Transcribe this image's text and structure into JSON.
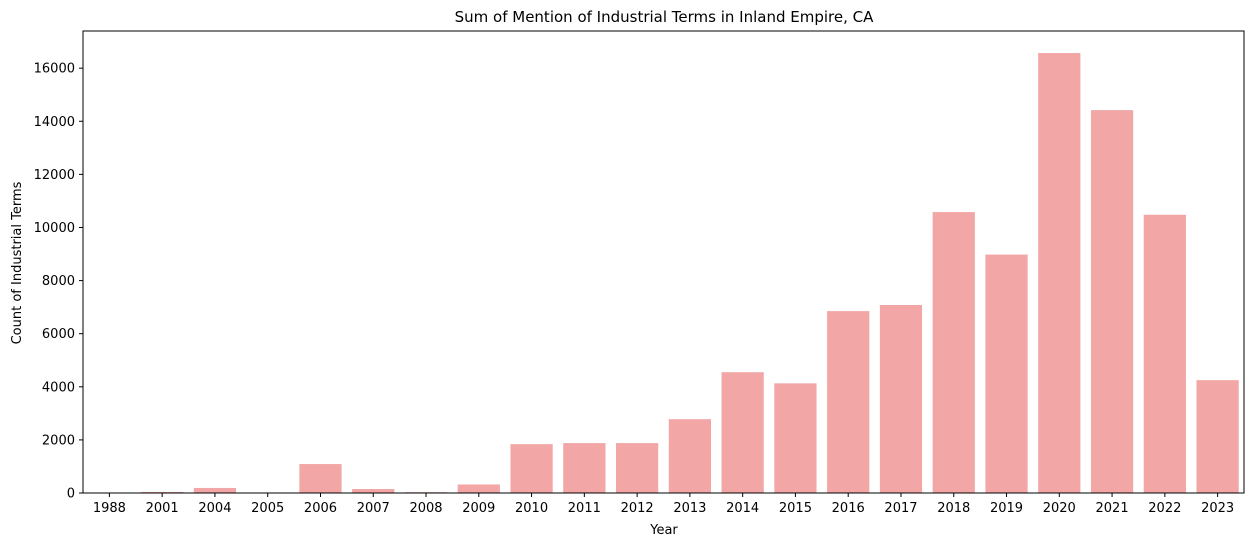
{
  "chart_data": {
    "type": "bar",
    "title": "Sum of Mention of Industrial Terms in Inland Empire, CA",
    "xlabel": "Year",
    "ylabel": "Count of Industrial Terms",
    "categories": [
      "1988",
      "2001",
      "2004",
      "2005",
      "2006",
      "2007",
      "2008",
      "2009",
      "2010",
      "2011",
      "2012",
      "2013",
      "2014",
      "2015",
      "2016",
      "2017",
      "2018",
      "2019",
      "2020",
      "2021",
      "2022",
      "2023"
    ],
    "values": [
      5,
      40,
      190,
      5,
      1090,
      150,
      30,
      320,
      1840,
      1880,
      1880,
      2780,
      4550,
      4130,
      6850,
      7080,
      10580,
      8980,
      16570,
      14420,
      10480,
      4250
    ],
    "ylim": [
      0,
      17400
    ],
    "yticks": [
      0,
      2000,
      4000,
      6000,
      8000,
      10000,
      12000,
      14000,
      16000
    ],
    "bar_color": "#f2a6a6",
    "grid": false,
    "legend": null
  }
}
